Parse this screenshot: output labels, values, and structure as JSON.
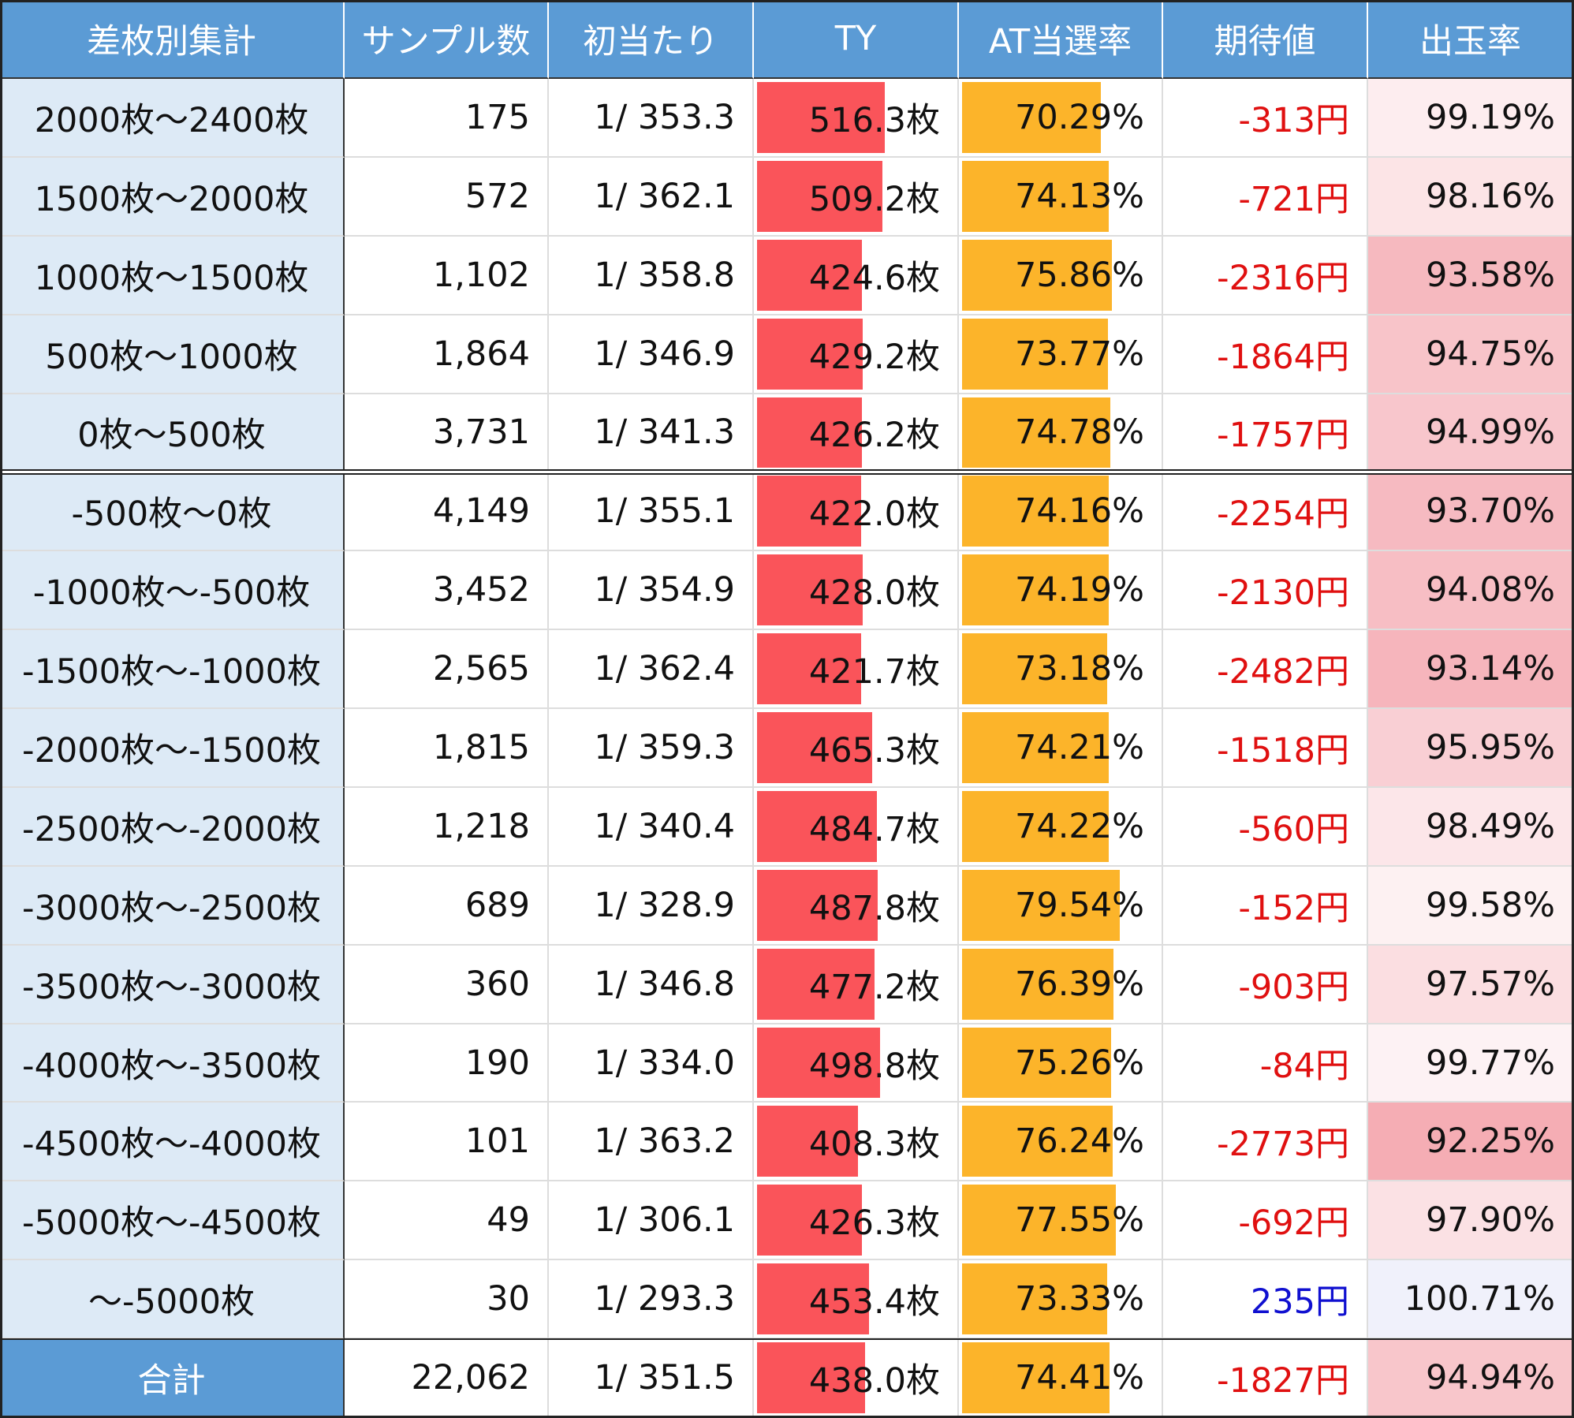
{
  "table": {
    "header": [
      "差枚別集計",
      "サンプル数",
      "初当たり",
      "TY",
      "AT当選率",
      "期待値",
      "出玉率"
    ],
    "rows": [
      {
        "range": "2000枚～2400枚",
        "samples": "175",
        "first_hit": "1/ 353.3",
        "ty": {
          "value": 516.3,
          "label": "516.3枚"
        },
        "at": {
          "value": 70.29,
          "label": "70.29%"
        },
        "expected": {
          "value": -313,
          "label": "-313円"
        },
        "payout": {
          "value": 99.19,
          "label": "99.19%"
        }
      },
      {
        "range": "1500枚～2000枚",
        "samples": "572",
        "first_hit": "1/ 362.1",
        "ty": {
          "value": 509.2,
          "label": "509.2枚"
        },
        "at": {
          "value": 74.13,
          "label": "74.13%"
        },
        "expected": {
          "value": -721,
          "label": "-721円"
        },
        "payout": {
          "value": 98.16,
          "label": "98.16%"
        }
      },
      {
        "range": "1000枚～1500枚",
        "samples": "1,102",
        "first_hit": "1/ 358.8",
        "ty": {
          "value": 424.6,
          "label": "424.6枚"
        },
        "at": {
          "value": 75.86,
          "label": "75.86%"
        },
        "expected": {
          "value": -2316,
          "label": "-2316円"
        },
        "payout": {
          "value": 93.58,
          "label": "93.58%"
        }
      },
      {
        "range": "500枚～1000枚",
        "samples": "1,864",
        "first_hit": "1/ 346.9",
        "ty": {
          "value": 429.2,
          "label": "429.2枚"
        },
        "at": {
          "value": 73.77,
          "label": "73.77%"
        },
        "expected": {
          "value": -1864,
          "label": "-1864円"
        },
        "payout": {
          "value": 94.75,
          "label": "94.75%"
        }
      },
      {
        "range": "0枚～500枚",
        "samples": "3,731",
        "first_hit": "1/ 341.3",
        "ty": {
          "value": 426.2,
          "label": "426.2枚"
        },
        "at": {
          "value": 74.78,
          "label": "74.78%"
        },
        "expected": {
          "value": -1757,
          "label": "-1757円"
        },
        "payout": {
          "value": 94.99,
          "label": "94.99%"
        }
      },
      {
        "range": "-500枚～0枚",
        "samples": "4,149",
        "first_hit": "1/ 355.1",
        "ty": {
          "value": 422.0,
          "label": "422.0枚"
        },
        "at": {
          "value": 74.16,
          "label": "74.16%"
        },
        "expected": {
          "value": -2254,
          "label": "-2254円"
        },
        "payout": {
          "value": 93.7,
          "label": "93.70%"
        }
      },
      {
        "range": "-1000枚～-500枚",
        "samples": "3,452",
        "first_hit": "1/ 354.9",
        "ty": {
          "value": 428.0,
          "label": "428.0枚"
        },
        "at": {
          "value": 74.19,
          "label": "74.19%"
        },
        "expected": {
          "value": -2130,
          "label": "-2130円"
        },
        "payout": {
          "value": 94.08,
          "label": "94.08%"
        }
      },
      {
        "range": "-1500枚～-1000枚",
        "samples": "2,565",
        "first_hit": "1/ 362.4",
        "ty": {
          "value": 421.7,
          "label": "421.7枚"
        },
        "at": {
          "value": 73.18,
          "label": "73.18%"
        },
        "expected": {
          "value": -2482,
          "label": "-2482円"
        },
        "payout": {
          "value": 93.14,
          "label": "93.14%"
        }
      },
      {
        "range": "-2000枚～-1500枚",
        "samples": "1,815",
        "first_hit": "1/ 359.3",
        "ty": {
          "value": 465.3,
          "label": "465.3枚"
        },
        "at": {
          "value": 74.21,
          "label": "74.21%"
        },
        "expected": {
          "value": -1518,
          "label": "-1518円"
        },
        "payout": {
          "value": 95.95,
          "label": "95.95%"
        }
      },
      {
        "range": "-2500枚～-2000枚",
        "samples": "1,218",
        "first_hit": "1/ 340.4",
        "ty": {
          "value": 484.7,
          "label": "484.7枚"
        },
        "at": {
          "value": 74.22,
          "label": "74.22%"
        },
        "expected": {
          "value": -560,
          "label": "-560円"
        },
        "payout": {
          "value": 98.49,
          "label": "98.49%"
        }
      },
      {
        "range": "-3000枚～-2500枚",
        "samples": "689",
        "first_hit": "1/ 328.9",
        "ty": {
          "value": 487.8,
          "label": "487.8枚"
        },
        "at": {
          "value": 79.54,
          "label": "79.54%"
        },
        "expected": {
          "value": -152,
          "label": "-152円"
        },
        "payout": {
          "value": 99.58,
          "label": "99.58%"
        }
      },
      {
        "range": "-3500枚～-3000枚",
        "samples": "360",
        "first_hit": "1/ 346.8",
        "ty": {
          "value": 477.2,
          "label": "477.2枚"
        },
        "at": {
          "value": 76.39,
          "label": "76.39%"
        },
        "expected": {
          "value": -903,
          "label": "-903円"
        },
        "payout": {
          "value": 97.57,
          "label": "97.57%"
        }
      },
      {
        "range": "-4000枚～-3500枚",
        "samples": "190",
        "first_hit": "1/ 334.0",
        "ty": {
          "value": 498.8,
          "label": "498.8枚"
        },
        "at": {
          "value": 75.26,
          "label": "75.26%"
        },
        "expected": {
          "value": -84,
          "label": "-84円"
        },
        "payout": {
          "value": 99.77,
          "label": "99.77%"
        }
      },
      {
        "range": "-4500枚～-4000枚",
        "samples": "101",
        "first_hit": "1/ 363.2",
        "ty": {
          "value": 408.3,
          "label": "408.3枚"
        },
        "at": {
          "value": 76.24,
          "label": "76.24%"
        },
        "expected": {
          "value": -2773,
          "label": "-2773円"
        },
        "payout": {
          "value": 92.25,
          "label": "92.25%"
        }
      },
      {
        "range": "-5000枚～-4500枚",
        "samples": "49",
        "first_hit": "1/ 306.1",
        "ty": {
          "value": 426.3,
          "label": "426.3枚"
        },
        "at": {
          "value": 77.55,
          "label": "77.55%"
        },
        "expected": {
          "value": -692,
          "label": "-692円"
        },
        "payout": {
          "value": 97.9,
          "label": "97.90%"
        }
      },
      {
        "range": "～-5000枚",
        "samples": "30",
        "first_hit": "1/ 293.3",
        "ty": {
          "value": 453.4,
          "label": "453.4枚"
        },
        "at": {
          "value": 73.33,
          "label": "73.33%"
        },
        "expected": {
          "value": 235,
          "label": "235円"
        },
        "payout": {
          "value": 100.71,
          "label": "100.71%"
        }
      }
    ],
    "total": {
      "range": "合計",
      "samples": "22,062",
      "first_hit": "1/ 351.5",
      "ty": {
        "value": 438.0,
        "label": "438.0枚"
      },
      "at": {
        "value": 74.41,
        "label": "74.41%"
      },
      "expected": {
        "value": -1827,
        "label": "-1827円"
      },
      "payout": {
        "value": 94.94,
        "label": "94.94%"
      }
    }
  }
}
